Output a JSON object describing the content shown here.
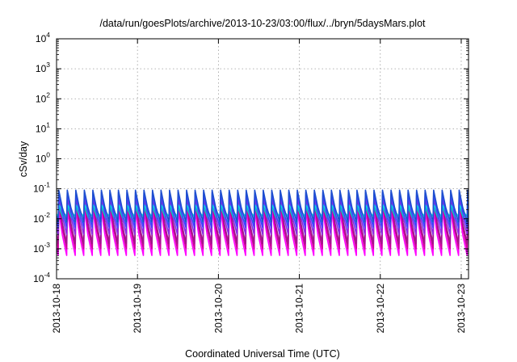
{
  "chart_data": {
    "type": "line",
    "title": "/data/run/goesPlots/archive/2013-10-23/03:00/flux/../bryn/5daysMars.plot",
    "xlabel": "Coordinated Universal Time (UTC)",
    "ylabel": "cSv/day",
    "y_scale": "log",
    "ylim": [
      0.0001,
      10000
    ],
    "xlim": [
      "2013-10-18T00:00",
      "2013-10-23T02:10"
    ],
    "y_ticks": [
      {
        "base": "10",
        "exp": "-4"
      },
      {
        "base": "10",
        "exp": "-3"
      },
      {
        "base": "10",
        "exp": "-2"
      },
      {
        "base": "10",
        "exp": "-1"
      },
      {
        "base": "10",
        "exp": "0"
      },
      {
        "base": "10",
        "exp": "1"
      },
      {
        "base": "10",
        "exp": "2"
      },
      {
        "base": "10",
        "exp": "3"
      },
      {
        "base": "10",
        "exp": "4"
      }
    ],
    "x_ticks": [
      "2013-10-18",
      "2013-10-19",
      "2013-10-20",
      "2013-10-21",
      "2013-10-22",
      "2013-10-23"
    ],
    "grid": true,
    "legend": "none",
    "pattern": {
      "cycles_per_day": 9.5,
      "start_offset_days": 0.02
    },
    "series": [
      {
        "color": "#ff00ff",
        "peak": 0.02,
        "trough": 0.0006
      },
      {
        "color": "#cc0099",
        "peak": 0.035,
        "trough": 0.001
      },
      {
        "color": "#a0188c",
        "peak": 0.05,
        "trough": 0.0015
      },
      {
        "color": "#8a2be2",
        "peak": 0.06,
        "trough": 0.003
      },
      {
        "color": "#00c8c8",
        "peak": 0.025,
        "trough": 0.007
      },
      {
        "color": "#00e5e5",
        "peak": 0.03,
        "trough": 0.012
      },
      {
        "color": "#4040ff",
        "peak": 0.075,
        "trough": 0.005
      },
      {
        "color": "#1e4fd0",
        "peak": 0.09,
        "trough": 0.008
      }
    ]
  }
}
